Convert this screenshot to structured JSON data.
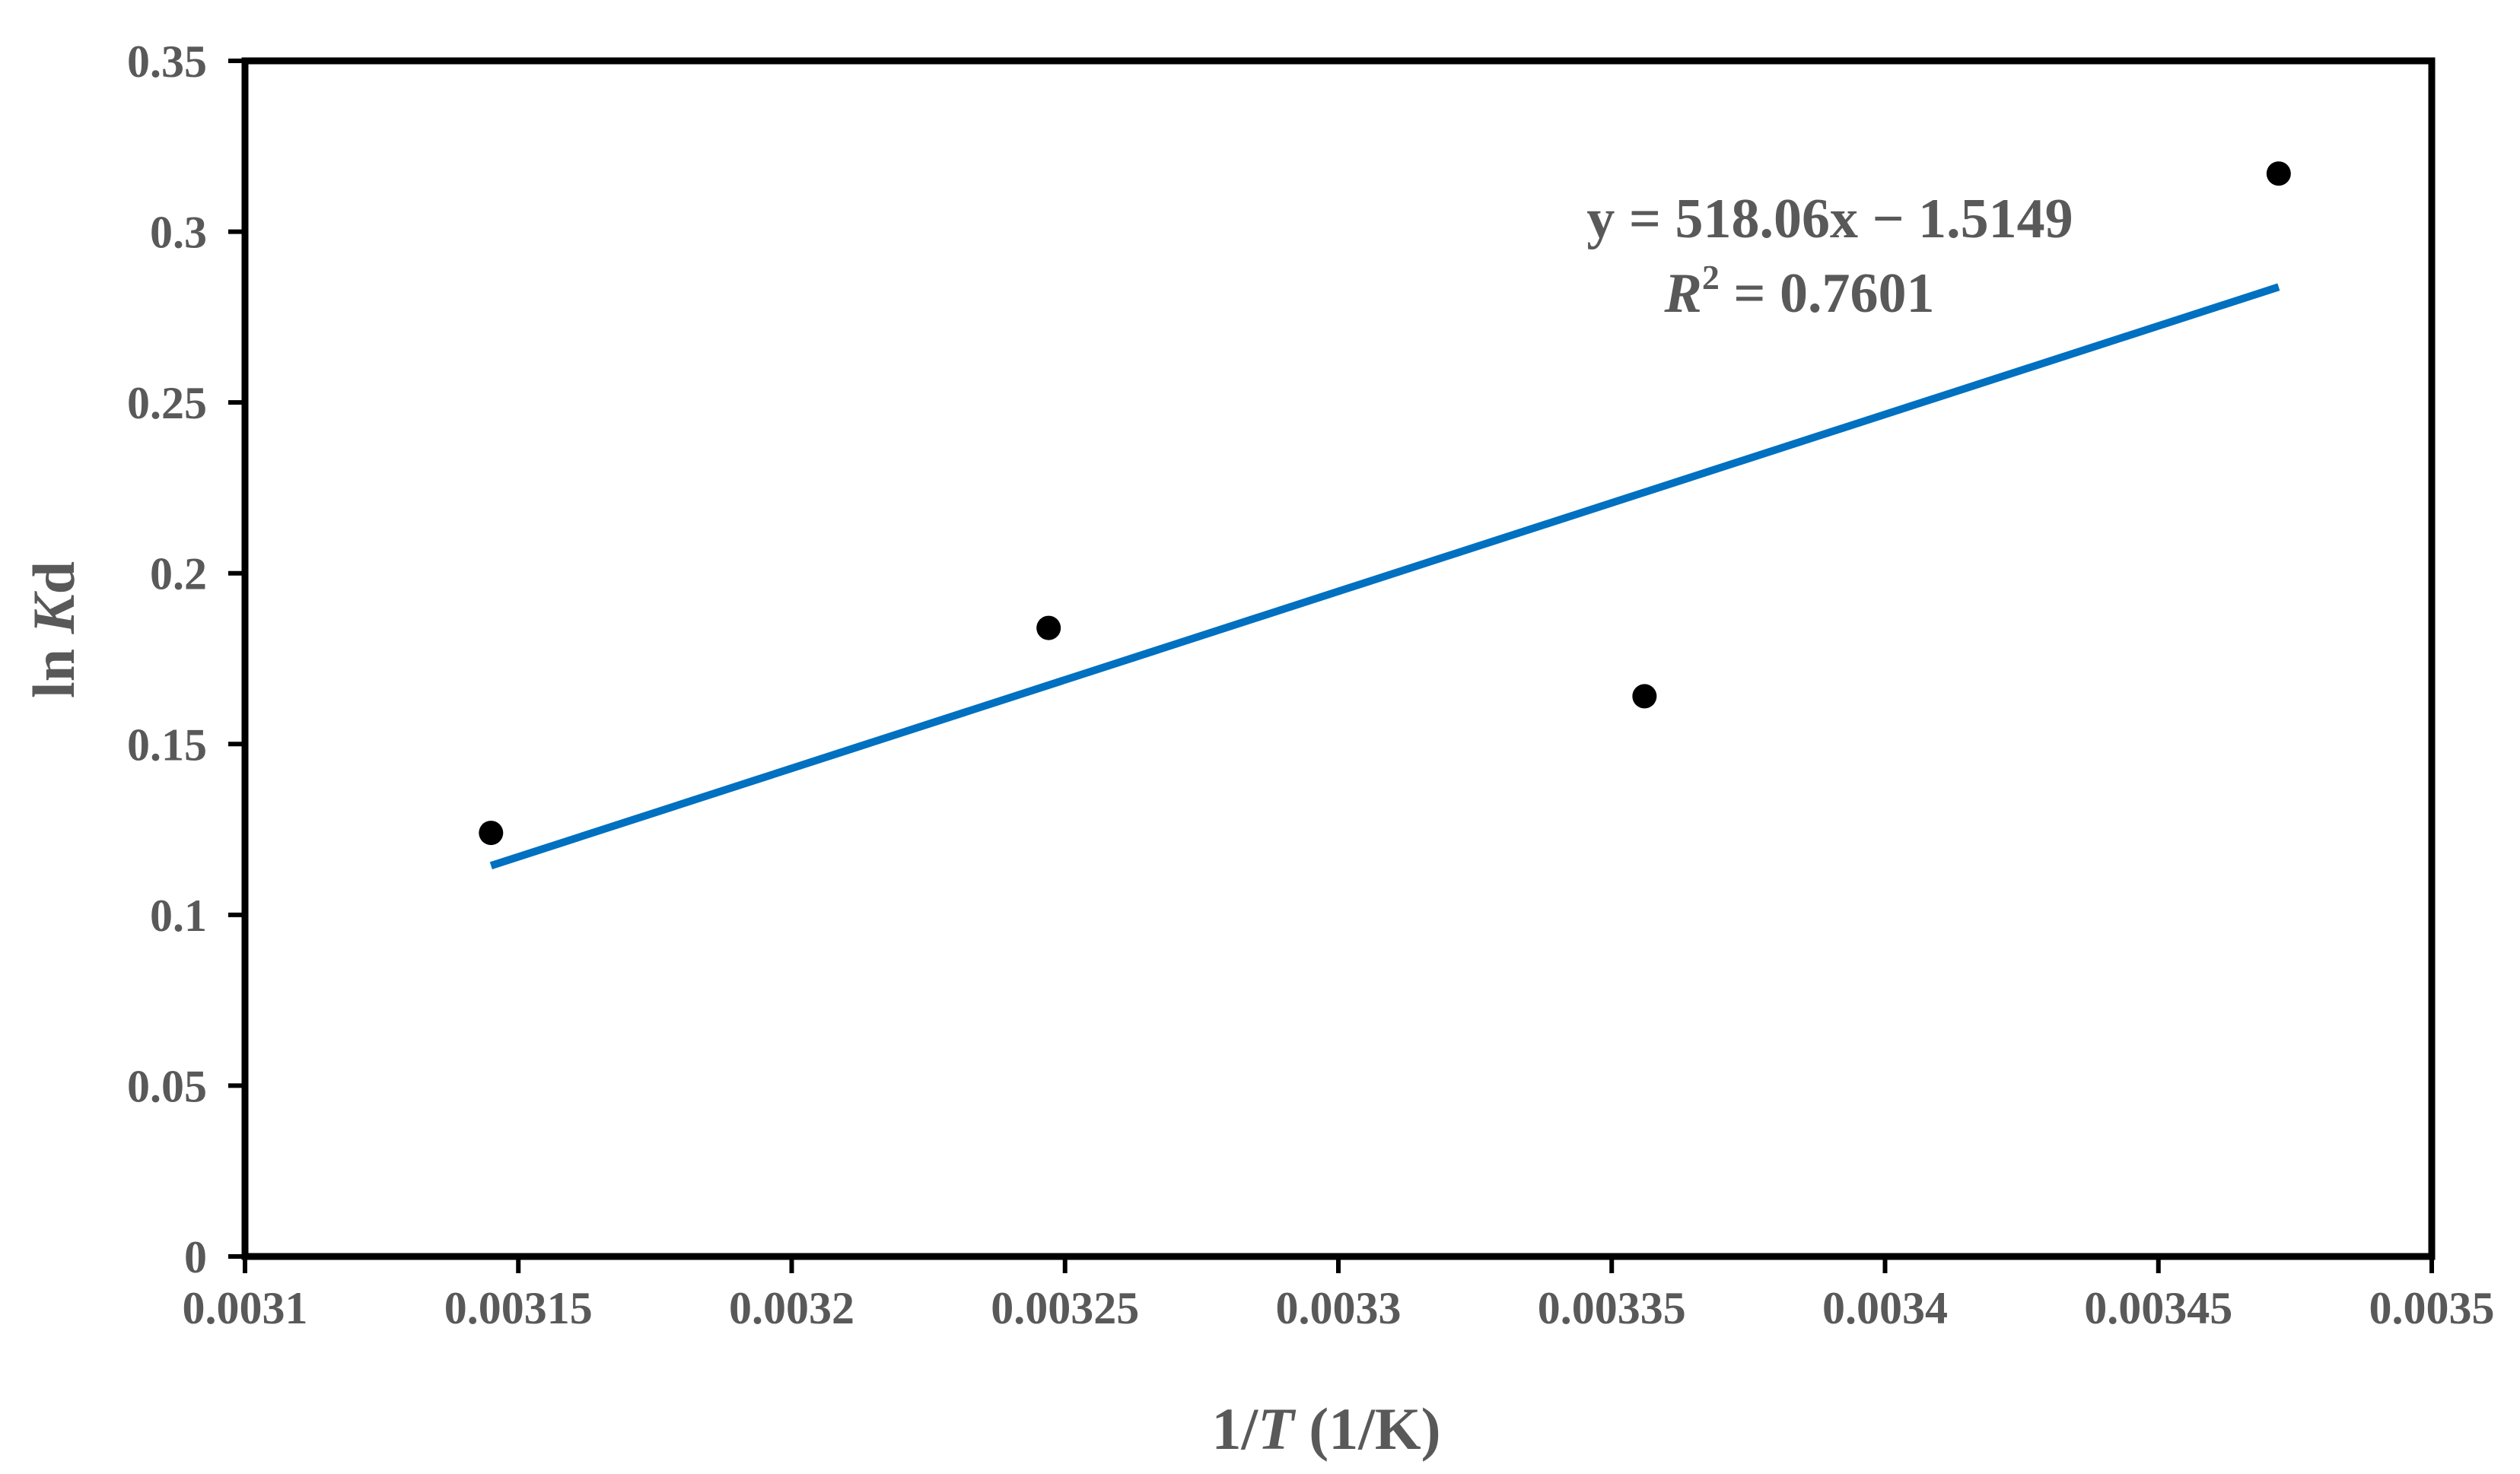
{
  "chart_data": {
    "type": "scatter",
    "xlabel_parts": [
      "1/",
      "T",
      " (1/K)"
    ],
    "ylabel_parts": [
      "ln ",
      "K",
      "d"
    ],
    "xlim": [
      0.0031,
      0.0035
    ],
    "ylim": [
      0,
      0.35
    ],
    "x_ticks": [
      0.0031,
      0.00315,
      0.0032,
      0.00325,
      0.0033,
      0.00335,
      0.0034,
      0.00345,
      0.0035
    ],
    "x_tick_labels": [
      "0.0031",
      "0.00315",
      "0.0032",
      "0.00325",
      "0.0033",
      "0.00335",
      "0.0034",
      "0.00345",
      "0.0035"
    ],
    "y_ticks": [
      0,
      0.05,
      0.1,
      0.15,
      0.2,
      0.25,
      0.3,
      0.35
    ],
    "y_tick_labels": [
      "0",
      "0.05",
      "0.1",
      "0.15",
      "0.2",
      "0.25",
      "0.3",
      "0.35"
    ],
    "grid": false,
    "series": [
      {
        "x": [
          0.003145,
          0.003247,
          0.003356,
          0.003472
        ],
        "y": [
          0.124,
          0.184,
          0.164,
          0.317
        ],
        "color": "#000000"
      }
    ],
    "trendline": {
      "slope": 518.06,
      "intercept": -1.5149,
      "x_range": [
        0.003145,
        0.003472
      ],
      "color": "#0070C0",
      "equation": "y = 518.06x − 1.5149",
      "r2_symbol": "R",
      "r2_exponent": "2",
      "r2_rest": " = 0.7601"
    }
  }
}
